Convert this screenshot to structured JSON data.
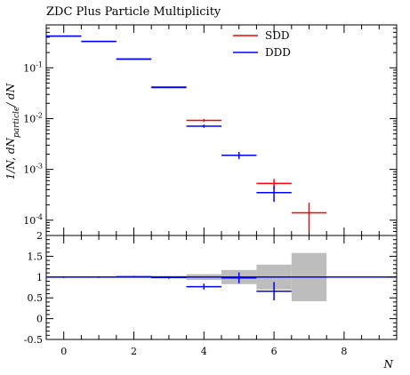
{
  "chart_data": {
    "type": "scatter",
    "title": "ZDC Plus Particle Multiplicity",
    "xlabel": "N",
    "ylabel_main": "1/N, dN",
    "ylabel_sub": "particle",
    "ylabel_tail": "/ dN",
    "xlim": [
      -0.5,
      9.5
    ],
    "x_ticks": [
      0,
      2,
      4,
      6,
      8
    ],
    "main_panel": {
      "yscale": "log",
      "ylim": [
        5e-05,
        0.7
      ],
      "y_ticks": [
        {
          "value": 0.1,
          "base": "10",
          "exp": "-1"
        },
        {
          "value": 0.01,
          "base": "10",
          "exp": "-2"
        },
        {
          "value": 0.001,
          "base": "10",
          "exp": "-3"
        },
        {
          "value": 0.0001,
          "base": "10",
          "exp": "-4"
        }
      ],
      "legend_position": "top-right",
      "series": [
        {
          "name": "SDD",
          "color": "#ff0000",
          "points": [
            {
              "x": 0,
              "y": 0.42,
              "yerr": 0.005
            },
            {
              "x": 1,
              "y": 0.33,
              "yerr": 0.004
            },
            {
              "x": 2,
              "y": 0.15,
              "yerr": 0.003
            },
            {
              "x": 3,
              "y": 0.042,
              "yerr": 0.001
            },
            {
              "x": 4,
              "y": 0.0092,
              "yerr": 0.0006
            },
            {
              "x": 5,
              "y": 0.0019,
              "yerr": 0.0002
            },
            {
              "x": 6,
              "y": 0.00053,
              "yerr": 0.00012
            },
            {
              "x": 7,
              "y": 0.00014,
              "yerr": 8e-05
            }
          ]
        },
        {
          "name": "DDD",
          "color": "#0000ff",
          "points": [
            {
              "x": 0,
              "y": 0.42,
              "yerr": 0.005
            },
            {
              "x": 1,
              "y": 0.33,
              "yerr": 0.004
            },
            {
              "x": 2,
              "y": 0.148,
              "yerr": 0.003
            },
            {
              "x": 3,
              "y": 0.041,
              "yerr": 0.001
            },
            {
              "x": 4,
              "y": 0.0071,
              "yerr": 0.0005
            },
            {
              "x": 5,
              "y": 0.0019,
              "yerr": 0.0003
            },
            {
              "x": 6,
              "y": 0.00035,
              "yerr": 0.00012
            }
          ]
        }
      ]
    },
    "ratio_panel": {
      "ylim": [
        -0.5,
        2
      ],
      "y_ticks": [
        -0.5,
        0,
        0.5,
        1,
        1.5,
        2
      ],
      "reference_line": 1,
      "uncertainty_band": [
        {
          "x": 0,
          "lo": 0.98,
          "hi": 1.02
        },
        {
          "x": 1,
          "lo": 0.98,
          "hi": 1.02
        },
        {
          "x": 2,
          "lo": 0.98,
          "hi": 1.02
        },
        {
          "x": 3,
          "lo": 0.97,
          "hi": 1.03
        },
        {
          "x": 4,
          "lo": 0.93,
          "hi": 1.07
        },
        {
          "x": 5,
          "lo": 0.83,
          "hi": 1.17
        },
        {
          "x": 6,
          "lo": 0.7,
          "hi": 1.3
        },
        {
          "x": 7,
          "lo": 0.42,
          "hi": 1.58
        }
      ],
      "series": [
        {
          "name": "DDD",
          "color": "#0000ff",
          "points": [
            {
              "x": 0,
              "y": 1.0,
              "yerr": 0.02
            },
            {
              "x": 1,
              "y": 1.0,
              "yerr": 0.02
            },
            {
              "x": 2,
              "y": 1.01,
              "yerr": 0.02
            },
            {
              "x": 3,
              "y": 0.99,
              "yerr": 0.03
            },
            {
              "x": 4,
              "y": 0.77,
              "yerr": 0.07
            },
            {
              "x": 5,
              "y": 0.98,
              "yerr": 0.13
            },
            {
              "x": 6,
              "y": 0.66,
              "yerr": 0.22
            }
          ]
        }
      ]
    }
  }
}
